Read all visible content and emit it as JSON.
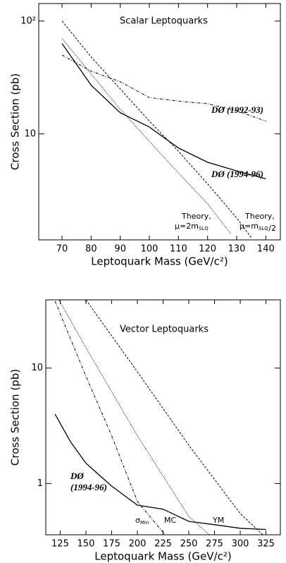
{
  "chart_data": [
    {
      "type": "line",
      "log_y": true,
      "xlabel": "Leptoquark Mass (GeV/c²)",
      "ylabel": "Cross Section (pb)",
      "xlim": [
        62,
        145
      ],
      "xticks": [
        70,
        80,
        90,
        100,
        110,
        120,
        130,
        140
      ],
      "ylim": [
        1.15,
        143
      ],
      "yticks": [
        10,
        {
          "value": 100,
          "label": "10²"
        }
      ],
      "annotations": [
        "Scalar Leptoquarks",
        "DØ (1992-93)",
        "DØ (1994-96)",
        "Theory,",
        "μ=2m",
        "SLQ",
        "Theory,",
        "μ=m",
        "SLQ",
        "/2"
      ],
      "series": [
        {
          "style": "solid",
          "color": "#000",
          "x": [
            70,
            80,
            90,
            100,
            110,
            120,
            130,
            140
          ],
          "values": [
            63,
            27,
            15.4,
            11.5,
            7.5,
            5.6,
            4.7,
            4.0
          ]
        },
        {
          "style": "dashdot",
          "color": "#000",
          "x": [
            70,
            80,
            90,
            100,
            110,
            120,
            130,
            140
          ],
          "values": [
            50,
            36,
            29,
            21,
            19.5,
            18.5,
            16,
            13
          ]
        },
        {
          "style": "dashed",
          "color": "#000",
          "x": [
            70,
            80,
            90,
            100,
            110,
            120,
            130,
            135
          ],
          "values": [
            100,
            48,
            25,
            13,
            7,
            3.6,
            1.8,
            1.2
          ]
        },
        {
          "style": "dotted",
          "color": "#000",
          "x": [
            70,
            80,
            90,
            100,
            110,
            120,
            128
          ],
          "values": [
            70,
            34,
            16.5,
            8.6,
            4.5,
            2.4,
            1.3
          ]
        }
      ]
    },
    {
      "type": "line",
      "log_y": true,
      "xlabel": "Leptoquark Mass (GeV/c²)",
      "ylabel": "Cross Section (pb)",
      "xlim": [
        111,
        339
      ],
      "xticks": [
        125,
        150,
        175,
        200,
        225,
        250,
        275,
        300,
        325
      ],
      "ylim": [
        0.36,
        39
      ],
      "yticks": [
        1,
        10
      ],
      "annotations": [
        "Vector Leptoquarks",
        "DØ",
        "(1994-96)",
        "σ",
        "Min",
        "MC",
        "YM"
      ],
      "series": [
        {
          "style": "solid",
          "color": "#000",
          "x": [
            120,
            135,
            150,
            175,
            200,
            225,
            250,
            275,
            300,
            325
          ],
          "values": [
            4.0,
            2.3,
            1.5,
            0.95,
            0.65,
            0.6,
            0.47,
            0.44,
            0.41,
            0.4
          ]
        },
        {
          "style": "dashdot",
          "color": "#000",
          "x": [
            120,
            150,
            175,
            200,
            227
          ],
          "values": [
            38,
            8.5,
            2.6,
            0.7,
            0.36
          ]
        },
        {
          "style": "dotted",
          "color": "#000",
          "x": [
            120,
            150,
            200,
            250,
            270
          ],
          "values": [
            45,
            15,
            2.6,
            0.52,
            0.36
          ]
        },
        {
          "style": "dashed",
          "color": "#000",
          "x": [
            150,
            200,
            250,
            300,
            322
          ],
          "values": [
            39,
            9.3,
            2.15,
            0.55,
            0.36
          ]
        }
      ]
    }
  ]
}
